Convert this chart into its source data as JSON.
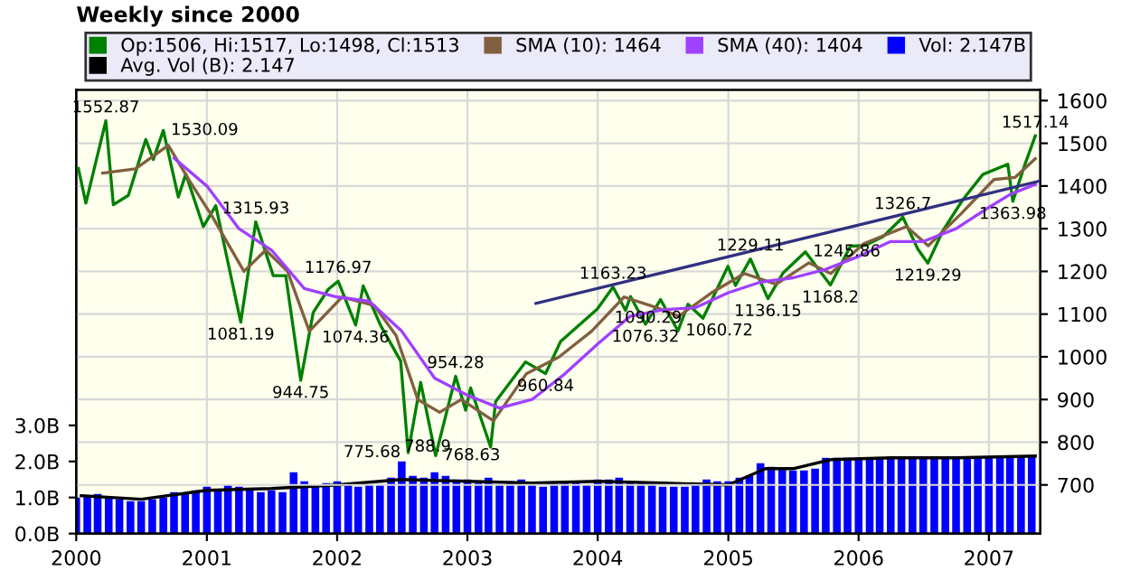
{
  "chart_data": {
    "type": "line",
    "title": "Weekly since 2000",
    "xlim": [
      "2000-01-01",
      "2007-05-25"
    ],
    "xticks": [
      "2000",
      "2001",
      "2002",
      "2003",
      "2004",
      "2005",
      "2006",
      "2007"
    ],
    "ylim": [
      586,
      1625
    ],
    "yticks": [
      700,
      800,
      900,
      1000,
      1100,
      1200,
      1300,
      1400,
      1500,
      1600
    ],
    "y2lim": [
      0,
      12.3
    ],
    "y2ticks": [
      {
        "value": 0,
        "label": "0.0B"
      },
      {
        "value": 1,
        "label": "1.0B"
      },
      {
        "value": 2,
        "label": "2.0B"
      },
      {
        "value": 3,
        "label": "3.0B"
      }
    ],
    "grid": true,
    "legend": "top",
    "marker": "none",
    "line_style": "solid",
    "series": [
      {
        "name": "Op:1506, Hi:1517, Lo:1498, Cl:1513",
        "color": "#008000",
        "x": [
          "2000-01-07",
          "2000-01-28",
          "2000-03-24",
          "2000-04-14",
          "2000-05-26",
          "2000-07-14",
          "2000-08-04",
          "2000-09-01",
          "2000-10-13",
          "2000-11-03",
          "2000-12-22",
          "2001-01-26",
          "2001-04-06",
          "2001-05-18",
          "2001-07-06",
          "2001-08-10",
          "2001-09-21",
          "2001-10-26",
          "2001-12-07",
          "2002-01-04",
          "2002-02-22",
          "2002-03-15",
          "2002-05-03",
          "2002-06-28",
          "2002-07-19",
          "2002-08-23",
          "2002-10-04",
          "2002-11-29",
          "2002-12-27",
          "2003-01-10",
          "2003-03-07",
          "2003-03-21",
          "2003-06-13",
          "2003-08-08",
          "2003-09-19",
          "2003-12-31",
          "2004-02-13",
          "2004-03-19",
          "2004-04-02",
          "2004-05-14",
          "2004-06-25",
          "2004-08-13",
          "2004-09-10",
          "2004-10-22",
          "2004-12-31",
          "2005-01-21",
          "2005-03-04",
          "2005-04-22",
          "2005-06-03",
          "2005-08-05",
          "2005-10-14",
          "2005-12-09",
          "2006-01-20",
          "2006-03-10",
          "2006-05-05",
          "2006-06-16",
          "2006-07-14",
          "2006-08-25",
          "2006-10-20",
          "2006-12-15",
          "2007-02-23",
          "2007-03-09",
          "2007-04-13",
          "2007-05-11"
        ],
        "values": [
          1441,
          1360,
          1552.87,
          1356,
          1378,
          1509,
          1462,
          1530.09,
          1374,
          1428,
          1305,
          1354,
          1081.19,
          1315.93,
          1190,
          1190,
          944.75,
          1104,
          1158,
          1176.97,
          1074.36,
          1166,
          1073,
          990,
          775.68,
          940,
          768.63,
          954.28,
          875,
          927,
          788.9,
          895,
          988,
          960.84,
          1036,
          1112,
          1163.23,
          1109,
          1141,
          1076.32,
          1134,
          1060.72,
          1123,
          1090.29,
          1212,
          1167,
          1229.11,
          1136.15,
          1196,
          1245.86,
          1168.2,
          1259,
          1261,
          1281,
          1326.7,
          1252,
          1219.29,
          1295,
          1368,
          1427,
          1451,
          1363.98,
          1453,
          1517.14
        ]
      },
      {
        "name": "SMA (10): 1464",
        "color": "#806040",
        "x": [
          "2000-03-15",
          "2000-06-15",
          "2000-09-15",
          "2000-11-15",
          "2001-01-15",
          "2001-04-15",
          "2001-06-15",
          "2001-08-15",
          "2001-10-15",
          "2002-01-15",
          "2002-04-15",
          "2002-06-15",
          "2002-08-15",
          "2002-10-15",
          "2002-12-15",
          "2003-03-15",
          "2003-06-15",
          "2003-09-15",
          "2003-12-15",
          "2004-03-15",
          "2004-06-15",
          "2004-08-15",
          "2004-11-15",
          "2005-02-15",
          "2005-05-15",
          "2005-08-15",
          "2005-10-15",
          "2006-01-15",
          "2006-05-15",
          "2006-07-15",
          "2006-10-15",
          "2007-01-15",
          "2007-03-15",
          "2007-05-11"
        ],
        "values": [
          1430,
          1440,
          1495,
          1410,
          1330,
          1200,
          1250,
          1200,
          1060,
          1140,
          1120,
          1050,
          900,
          870,
          900,
          850,
          960,
          1000,
          1060,
          1140,
          1115,
          1095,
          1150,
          1195,
          1170,
          1220,
          1195,
          1265,
          1305,
          1260,
          1335,
          1415,
          1420,
          1464
        ]
      },
      {
        "name": "SMA (40): 1404",
        "color": "#a040ff",
        "x": [
          "2000-10-01",
          "2001-01-01",
          "2001-04-01",
          "2001-07-01",
          "2001-10-01",
          "2002-01-01",
          "2002-04-01",
          "2002-07-01",
          "2002-10-01",
          "2003-01-01",
          "2003-04-01",
          "2003-07-01",
          "2003-10-01",
          "2004-01-01",
          "2004-04-01",
          "2004-07-01",
          "2004-10-01",
          "2005-01-01",
          "2005-04-01",
          "2005-07-01",
          "2005-10-01",
          "2006-01-01",
          "2006-04-01",
          "2006-07-01",
          "2006-10-01",
          "2007-01-01",
          "2007-03-01",
          "2007-05-11"
        ],
        "values": [
          1465,
          1400,
          1300,
          1250,
          1160,
          1140,
          1130,
          1060,
          950,
          910,
          880,
          900,
          960,
          1030,
          1095,
          1110,
          1115,
          1150,
          1175,
          1185,
          1205,
          1235,
          1270,
          1270,
          1300,
          1350,
          1380,
          1404
        ]
      },
      {
        "color": "#303080",
        "x": [
          "2003-07-12",
          "2007-05-25"
        ],
        "values": [
          1125,
          1412
        ]
      },
      {
        "name": "Vol: 2.147B",
        "type": "bar",
        "axis": "y2",
        "color": "#0000ff",
        "x": [
          "2000-01",
          "2000-02",
          "2000-03",
          "2000-04",
          "2000-05",
          "2000-06",
          "2000-07",
          "2000-08",
          "2000-09",
          "2000-10",
          "2000-11",
          "2000-12",
          "2001-01",
          "2001-02",
          "2001-03",
          "2001-04",
          "2001-05",
          "2001-06",
          "2001-07",
          "2001-08",
          "2001-09",
          "2001-10",
          "2001-11",
          "2001-12",
          "2002-01",
          "2002-02",
          "2002-03",
          "2002-04",
          "2002-05",
          "2002-06",
          "2002-07",
          "2002-08",
          "2002-09",
          "2002-10",
          "2002-11",
          "2002-12",
          "2003-01",
          "2003-02",
          "2003-03",
          "2003-04",
          "2003-05",
          "2003-06",
          "2003-07",
          "2003-08",
          "2003-09",
          "2003-10",
          "2003-11",
          "2003-12",
          "2004-01",
          "2004-02",
          "2004-03",
          "2004-04",
          "2004-05",
          "2004-06",
          "2004-07",
          "2004-08",
          "2004-09",
          "2004-10",
          "2004-11",
          "2004-12",
          "2005-01",
          "2005-02",
          "2005-03",
          "2005-04",
          "2005-05",
          "2005-06",
          "2005-07",
          "2005-08",
          "2005-09",
          "2005-10",
          "2005-11",
          "2005-12",
          "2006-01",
          "2006-02",
          "2006-03",
          "2006-04",
          "2006-05",
          "2006-06",
          "2006-07",
          "2006-08",
          "2006-09",
          "2006-10",
          "2006-11",
          "2006-12",
          "2007-01",
          "2007-02",
          "2007-03",
          "2007-04",
          "2007-05"
        ],
        "values": [
          1.0,
          1.05,
          1.1,
          1.0,
          0.95,
          0.9,
          0.9,
          0.95,
          1.0,
          1.15,
          1.1,
          1.2,
          1.3,
          1.2,
          1.35,
          1.3,
          1.2,
          1.15,
          1.2,
          1.15,
          1.7,
          1.45,
          1.35,
          1.4,
          1.45,
          1.4,
          1.3,
          1.35,
          1.35,
          1.55,
          2.0,
          1.6,
          1.55,
          1.7,
          1.6,
          1.5,
          1.5,
          1.4,
          1.55,
          1.35,
          1.45,
          1.5,
          1.4,
          1.3,
          1.45,
          1.45,
          1.4,
          1.35,
          1.5,
          1.5,
          1.55,
          1.45,
          1.4,
          1.35,
          1.3,
          1.3,
          1.3,
          1.4,
          1.5,
          1.45,
          1.45,
          1.55,
          1.6,
          1.95,
          1.85,
          1.8,
          1.75,
          1.75,
          1.8,
          2.1,
          2.1,
          2.1,
          2.1,
          2.1,
          2.1,
          2.1,
          2.1,
          2.1,
          2.1,
          2.1,
          2.1,
          2.1,
          2.1,
          2.1,
          2.1,
          2.1,
          2.15,
          2.15,
          2.15
        ]
      },
      {
        "name": "Avg. Vol (B): 2.147",
        "axis": "y2",
        "color": "#000000",
        "x": [
          "2000-01-15",
          "2000-07-01",
          "2001-01-01",
          "2001-07-01",
          "2002-01-01",
          "2002-07-01",
          "2003-01-01",
          "2003-07-01",
          "2004-01-01",
          "2004-07-01",
          "2005-01-01",
          "2005-04-15",
          "2005-07-01",
          "2005-10-15",
          "2006-04-01",
          "2006-10-01",
          "2007-05-11"
        ],
        "values": [
          1.05,
          0.95,
          1.2,
          1.25,
          1.35,
          1.5,
          1.45,
          1.4,
          1.45,
          1.4,
          1.35,
          1.8,
          1.8,
          2.05,
          2.1,
          2.1,
          2.15
        ]
      }
    ],
    "annotations": [
      {
        "text": "1552.87",
        "x": "2000-03-24",
        "y": 1552.87
      },
      {
        "text": "1530.09",
        "x": "2000-09-01",
        "y": 1530.09
      },
      {
        "text": "1081.19",
        "x": "2001-04-06",
        "y": 1081.19
      },
      {
        "text": "1315.93",
        "x": "2001-05-18",
        "y": 1315.93
      },
      {
        "text": "944.75",
        "x": "2001-09-21",
        "y": 944.75
      },
      {
        "text": "1176.97",
        "x": "2002-01-04",
        "y": 1176.97
      },
      {
        "text": "1074.36",
        "x": "2002-02-22",
        "y": 1074.36
      },
      {
        "text": "775.68",
        "x": "2002-07-19",
        "y": 775.68
      },
      {
        "text": "768.63",
        "x": "2002-10-04",
        "y": 768.63
      },
      {
        "text": "954.28",
        "x": "2002-11-29",
        "y": 954.28
      },
      {
        "text": "788.9",
        "x": "2003-03-07",
        "y": 788.9
      },
      {
        "text": "960.84",
        "x": "2003-08-08",
        "y": 960.84
      },
      {
        "text": "1163.23",
        "x": "2004-02-13",
        "y": 1163.23
      },
      {
        "text": "1076.32",
        "x": "2004-05-14",
        "y": 1076.32
      },
      {
        "text": "1060.72",
        "x": "2004-08-13",
        "y": 1060.72
      },
      {
        "text": "1090.29",
        "x": "2004-10-22",
        "y": 1090.29
      },
      {
        "text": "1229.11",
        "x": "2005-03-04",
        "y": 1229.11
      },
      {
        "text": "1136.15",
        "x": "2005-04-22",
        "y": 1136.15
      },
      {
        "text": "1245.86",
        "x": "2005-08-05",
        "y": 1245.86
      },
      {
        "text": "1168.2",
        "x": "2005-10-14",
        "y": 1168.2
      },
      {
        "text": "1326.7",
        "x": "2006-05-05",
        "y": 1326.7
      },
      {
        "text": "1219.29",
        "x": "2006-07-14",
        "y": 1219.29
      },
      {
        "text": "1363.98",
        "x": "2007-03-09",
        "y": 1363.98
      },
      {
        "text": "1517.14",
        "x": "2007-05-11",
        "y": 1517.14
      }
    ]
  }
}
